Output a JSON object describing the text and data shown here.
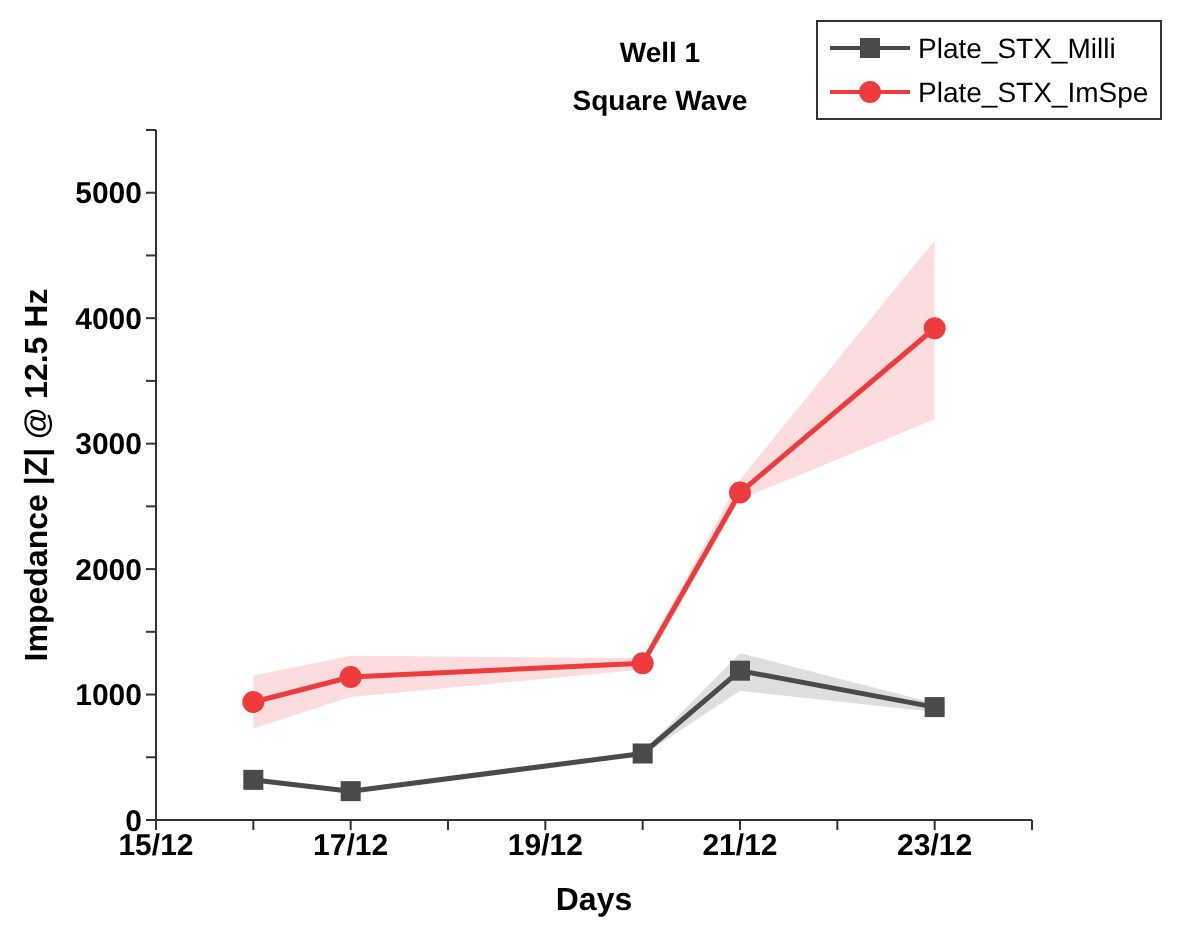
{
  "chart_data": {
    "type": "line",
    "title": "Well 1",
    "subtitle": "Square Wave",
    "xlabel": "Days",
    "ylabel": "Impedance |Z| @ 12.5 Hz",
    "x": [
      "--12-16",
      "--12-17",
      "--12-20",
      "--12-21",
      "--12-23"
    ],
    "series": [
      {
        "name": "Plate_STX_Milli",
        "color": "#4a4a4a",
        "marker": "square",
        "values": [
          320,
          230,
          530,
          1190,
          900
        ],
        "lower": [
          300,
          215,
          515,
          1030,
          860
        ],
        "upper": [
          340,
          245,
          545,
          1330,
          930
        ]
      },
      {
        "name": "Plate_STX_ImSpe",
        "color": "#ee3b3b",
        "marker": "circle",
        "values": [
          940,
          1140,
          1250,
          2610,
          3920
        ],
        "lower": [
          730,
          980,
          1200,
          2555,
          3195
        ],
        "upper": [
          1150,
          1310,
          1290,
          2715,
          4620
        ]
      }
    ],
    "xlim": [
      "--12-15",
      "--12-24"
    ],
    "xticks": [
      {
        "value": "--12-15",
        "label": "15/12"
      },
      {
        "value": "--12-16",
        "label": null
      },
      {
        "value": "--12-17",
        "label": "17/12"
      },
      {
        "value": "--12-18",
        "label": null
      },
      {
        "value": "--12-19",
        "label": "19/12"
      },
      {
        "value": "--12-20",
        "label": null
      },
      {
        "value": "--12-21",
        "label": "21/12"
      },
      {
        "value": "--12-22",
        "label": null
      },
      {
        "value": "--12-23",
        "label": "23/12"
      },
      {
        "value": "--12-24",
        "label": null
      }
    ],
    "ylim": [
      0,
      5500
    ],
    "yticks": [
      0,
      {
        "value": 500,
        "label": null
      },
      1000,
      {
        "value": 1500,
        "label": null
      },
      2000,
      {
        "value": 2500,
        "label": null
      },
      3000,
      {
        "value": 3500,
        "label": null
      },
      4000,
      {
        "value": 4500,
        "label": null
      },
      5000,
      {
        "value": 5500,
        "label": null
      }
    ],
    "legend": "top right",
    "line_style": "solid"
  }
}
